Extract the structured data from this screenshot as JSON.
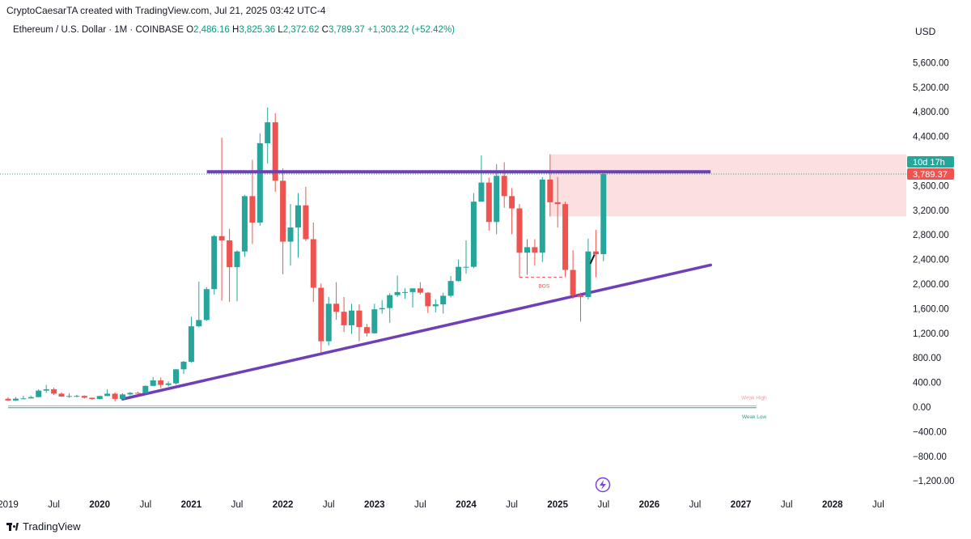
{
  "header": {
    "credit": "CryptoCaesarTA created with TradingView.com, Jul 21, 2025 03:42 UTC-4",
    "symbol": "Ethereum / U.S. Dollar · 1M · COINBASE",
    "ohlc": [
      {
        "label": "O",
        "value": "2,486.16"
      },
      {
        "label": "H",
        "value": "3,825.36"
      },
      {
        "label": "L",
        "value": "2,372.62"
      },
      {
        "label": "C",
        "value": "3,789.37"
      }
    ],
    "change": "+1,303.22 (+52.42%)",
    "currency": "USD"
  },
  "price_tags": {
    "countdown": "10d 17h",
    "last_price": "3,789.37"
  },
  "annotations": {
    "bos": "BOS",
    "weak_high": "Weak High",
    "weak_low": "Weak Low"
  },
  "footer": {
    "logo_text": "TradingView"
  },
  "colors": {
    "up": "#26a69a",
    "down": "#ef5350",
    "trendline": "#6f3fb8",
    "zone": "#fbdada",
    "weak_high": "#f0a0a0",
    "weak_low": "#26a69a"
  },
  "chart_data": {
    "type": "candlestick",
    "interval": "1M",
    "y_axis_ticks": [
      "5,600.00",
      "5,200.00",
      "4,800.00",
      "4,400.00",
      "3,600.00",
      "3,200.00",
      "2,800.00",
      "2,400.00",
      "2,000.00",
      "1,600.00",
      "1,200.00",
      "800.00",
      "400.00",
      "0.00",
      "−400.00",
      "−800.00",
      "−1,200.00"
    ],
    "y_tick_values": [
      5600,
      5200,
      4800,
      4400,
      3600,
      3200,
      2800,
      2400,
      2000,
      1600,
      1200,
      800,
      400,
      0,
      -400,
      -800,
      -1200
    ],
    "ylim": [
      -1400,
      5900
    ],
    "x_axis_labels": [
      {
        "t": 2019.0,
        "label": "2019"
      },
      {
        "t": 2019.5,
        "label": "Jul"
      },
      {
        "t": 2020.0,
        "label": "2020"
      },
      {
        "t": 2020.5,
        "label": "Jul"
      },
      {
        "t": 2021.0,
        "label": "2021"
      },
      {
        "t": 2021.5,
        "label": "Jul"
      },
      {
        "t": 2022.0,
        "label": "2022"
      },
      {
        "t": 2022.5,
        "label": "Jul"
      },
      {
        "t": 2023.0,
        "label": "2023"
      },
      {
        "t": 2023.5,
        "label": "Jul"
      },
      {
        "t": 2024.0,
        "label": "2024"
      },
      {
        "t": 2024.5,
        "label": "Jul"
      },
      {
        "t": 2025.0,
        "label": "2025"
      },
      {
        "t": 2025.5,
        "label": "Jul"
      },
      {
        "t": 2026.0,
        "label": "2026"
      },
      {
        "t": 2026.5,
        "label": "Jul"
      },
      {
        "t": 2027.0,
        "label": "2027"
      },
      {
        "t": 2027.5,
        "label": "Jul"
      },
      {
        "t": 2028.0,
        "label": "2028"
      },
      {
        "t": 2028.5,
        "label": "Jul"
      }
    ],
    "x_bold_years": [
      "2020",
      "2021",
      "2022",
      "2023",
      "2024",
      "2025",
      "2026",
      "2027",
      "2028"
    ],
    "candles": [
      {
        "t": 2019.0,
        "o": 135,
        "h": 160,
        "l": 100,
        "c": 107
      },
      {
        "t": 2019.083,
        "o": 107,
        "h": 165,
        "l": 102,
        "c": 137
      },
      {
        "t": 2019.167,
        "o": 137,
        "h": 185,
        "l": 130,
        "c": 141
      },
      {
        "t": 2019.25,
        "o": 141,
        "h": 185,
        "l": 140,
        "c": 162
      },
      {
        "t": 2019.333,
        "o": 162,
        "h": 290,
        "l": 160,
        "c": 268
      },
      {
        "t": 2019.417,
        "o": 268,
        "h": 360,
        "l": 230,
        "c": 290
      },
      {
        "t": 2019.5,
        "o": 290,
        "h": 315,
        "l": 195,
        "c": 218
      },
      {
        "t": 2019.583,
        "o": 218,
        "h": 240,
        "l": 165,
        "c": 171
      },
      {
        "t": 2019.667,
        "o": 171,
        "h": 225,
        "l": 152,
        "c": 180
      },
      {
        "t": 2019.75,
        "o": 180,
        "h": 200,
        "l": 160,
        "c": 182
      },
      {
        "t": 2019.833,
        "o": 182,
        "h": 190,
        "l": 140,
        "c": 152
      },
      {
        "t": 2019.917,
        "o": 152,
        "h": 155,
        "l": 118,
        "c": 130
      },
      {
        "t": 2020.0,
        "o": 130,
        "h": 185,
        "l": 127,
        "c": 180
      },
      {
        "t": 2020.083,
        "o": 180,
        "h": 288,
        "l": 178,
        "c": 218
      },
      {
        "t": 2020.167,
        "o": 218,
        "h": 240,
        "l": 90,
        "c": 133
      },
      {
        "t": 2020.25,
        "o": 133,
        "h": 225,
        "l": 130,
        "c": 206
      },
      {
        "t": 2020.333,
        "o": 206,
        "h": 245,
        "l": 190,
        "c": 231
      },
      {
        "t": 2020.417,
        "o": 231,
        "h": 250,
        "l": 216,
        "c": 226
      },
      {
        "t": 2020.5,
        "o": 226,
        "h": 350,
        "l": 225,
        "c": 345
      },
      {
        "t": 2020.583,
        "o": 345,
        "h": 490,
        "l": 340,
        "c": 434
      },
      {
        "t": 2020.667,
        "o": 434,
        "h": 480,
        "l": 310,
        "c": 360
      },
      {
        "t": 2020.75,
        "o": 360,
        "h": 420,
        "l": 335,
        "c": 386
      },
      {
        "t": 2020.833,
        "o": 386,
        "h": 620,
        "l": 370,
        "c": 614
      },
      {
        "t": 2020.917,
        "o": 614,
        "h": 750,
        "l": 540,
        "c": 737
      },
      {
        "t": 2021.0,
        "o": 737,
        "h": 1470,
        "l": 718,
        "c": 1313
      },
      {
        "t": 2021.083,
        "o": 1313,
        "h": 2040,
        "l": 1300,
        "c": 1416
      },
      {
        "t": 2021.167,
        "o": 1416,
        "h": 1950,
        "l": 1400,
        "c": 1918
      },
      {
        "t": 2021.25,
        "o": 1918,
        "h": 2800,
        "l": 1830,
        "c": 2780
      },
      {
        "t": 2021.333,
        "o": 2780,
        "h": 4380,
        "l": 1730,
        "c": 2710
      },
      {
        "t": 2021.417,
        "o": 2710,
        "h": 2900,
        "l": 1710,
        "c": 2275
      },
      {
        "t": 2021.5,
        "o": 2275,
        "h": 2550,
        "l": 1720,
        "c": 2530
      },
      {
        "t": 2021.583,
        "o": 2530,
        "h": 3450,
        "l": 2440,
        "c": 3430
      },
      {
        "t": 2021.667,
        "o": 3430,
        "h": 4020,
        "l": 2650,
        "c": 3000
      },
      {
        "t": 2021.75,
        "o": 3000,
        "h": 4450,
        "l": 2950,
        "c": 4290
      },
      {
        "t": 2021.833,
        "o": 4290,
        "h": 4870,
        "l": 3960,
        "c": 4630
      },
      {
        "t": 2021.917,
        "o": 4630,
        "h": 4780,
        "l": 3500,
        "c": 3680
      },
      {
        "t": 2022.0,
        "o": 3680,
        "h": 3880,
        "l": 2160,
        "c": 2690
      },
      {
        "t": 2022.083,
        "o": 2690,
        "h": 3300,
        "l": 2300,
        "c": 2920
      },
      {
        "t": 2022.167,
        "o": 2920,
        "h": 3480,
        "l": 2430,
        "c": 3280
      },
      {
        "t": 2022.25,
        "o": 3280,
        "h": 3580,
        "l": 2700,
        "c": 2730
      },
      {
        "t": 2022.333,
        "o": 2730,
        "h": 3000,
        "l": 1710,
        "c": 1940
      },
      {
        "t": 2022.417,
        "o": 1940,
        "h": 2010,
        "l": 880,
        "c": 1070
      },
      {
        "t": 2022.5,
        "o": 1070,
        "h": 1790,
        "l": 1000,
        "c": 1680
      },
      {
        "t": 2022.583,
        "o": 1680,
        "h": 2030,
        "l": 1420,
        "c": 1550
      },
      {
        "t": 2022.667,
        "o": 1550,
        "h": 1790,
        "l": 1220,
        "c": 1330
      },
      {
        "t": 2022.75,
        "o": 1330,
        "h": 1680,
        "l": 1190,
        "c": 1570
      },
      {
        "t": 2022.833,
        "o": 1570,
        "h": 1670,
        "l": 1070,
        "c": 1300
      },
      {
        "t": 2022.917,
        "o": 1300,
        "h": 1350,
        "l": 1150,
        "c": 1200
      },
      {
        "t": 2023.0,
        "o": 1200,
        "h": 1680,
        "l": 1190,
        "c": 1590
      },
      {
        "t": 2023.083,
        "o": 1590,
        "h": 1740,
        "l": 1520,
        "c": 1610
      },
      {
        "t": 2023.167,
        "o": 1610,
        "h": 1850,
        "l": 1370,
        "c": 1820
      },
      {
        "t": 2023.25,
        "o": 1820,
        "h": 2140,
        "l": 1790,
        "c": 1870
      },
      {
        "t": 2023.333,
        "o": 1870,
        "h": 1930,
        "l": 1760,
        "c": 1870
      },
      {
        "t": 2023.417,
        "o": 1870,
        "h": 1930,
        "l": 1620,
        "c": 1930
      },
      {
        "t": 2023.5,
        "o": 1930,
        "h": 2030,
        "l": 1830,
        "c": 1860
      },
      {
        "t": 2023.583,
        "o": 1860,
        "h": 1870,
        "l": 1530,
        "c": 1640
      },
      {
        "t": 2023.667,
        "o": 1640,
        "h": 1750,
        "l": 1540,
        "c": 1670
      },
      {
        "t": 2023.75,
        "o": 1670,
        "h": 1860,
        "l": 1520,
        "c": 1810
      },
      {
        "t": 2023.833,
        "o": 1810,
        "h": 2130,
        "l": 1780,
        "c": 2050
      },
      {
        "t": 2023.917,
        "o": 2050,
        "h": 2400,
        "l": 2040,
        "c": 2280
      },
      {
        "t": 2024.0,
        "o": 2280,
        "h": 2710,
        "l": 2170,
        "c": 2280
      },
      {
        "t": 2024.083,
        "o": 2280,
        "h": 3480,
        "l": 2260,
        "c": 3340
      },
      {
        "t": 2024.167,
        "o": 3340,
        "h": 4090,
        "l": 3340,
        "c": 3650
      },
      {
        "t": 2024.25,
        "o": 3650,
        "h": 3730,
        "l": 2870,
        "c": 3010
      },
      {
        "t": 2024.333,
        "o": 3010,
        "h": 3950,
        "l": 2810,
        "c": 3760
      },
      {
        "t": 2024.417,
        "o": 3760,
        "h": 3980,
        "l": 3240,
        "c": 3430
      },
      {
        "t": 2024.5,
        "o": 3430,
        "h": 3560,
        "l": 2810,
        "c": 3230
      },
      {
        "t": 2024.583,
        "o": 3230,
        "h": 3300,
        "l": 2110,
        "c": 2510
      },
      {
        "t": 2024.667,
        "o": 2510,
        "h": 2730,
        "l": 2150,
        "c": 2600
      },
      {
        "t": 2024.75,
        "o": 2600,
        "h": 2730,
        "l": 2300,
        "c": 2510
      },
      {
        "t": 2024.833,
        "o": 2510,
        "h": 3740,
        "l": 2360,
        "c": 3700
      },
      {
        "t": 2024.917,
        "o": 3700,
        "h": 4110,
        "l": 3100,
        "c": 3330
      },
      {
        "t": 2025.0,
        "o": 3330,
        "h": 3740,
        "l": 2920,
        "c": 3300
      },
      {
        "t": 2025.083,
        "o": 3300,
        "h": 3340,
        "l": 2120,
        "c": 2230
      },
      {
        "t": 2025.167,
        "o": 2230,
        "h": 2550,
        "l": 1760,
        "c": 1820
      },
      {
        "t": 2025.25,
        "o": 1820,
        "h": 1860,
        "l": 1390,
        "c": 1790
      },
      {
        "t": 2025.333,
        "o": 1790,
        "h": 2740,
        "l": 1750,
        "c": 2530
      },
      {
        "t": 2025.417,
        "o": 2530,
        "h": 2880,
        "l": 2110,
        "c": 2486
      },
      {
        "t": 2025.5,
        "o": 2486,
        "h": 3825,
        "l": 2373,
        "c": 3789
      }
    ],
    "horizontal_level": {
      "price": 3825,
      "t_start": 2021.17,
      "t_end": 2026.67
    },
    "trendline": {
      "t1": 2020.25,
      "p1": 130,
      "t2": 2026.67,
      "p2": 2310
    },
    "zone": {
      "t_start": 2024.917,
      "t_end": 2028.0,
      "top": 4110,
      "bottom": 3100
    },
    "bos": {
      "t_start": 2024.583,
      "t_end": 2025.083,
      "price": 2110
    },
    "weak_high": {
      "price": 20,
      "t_end": 2027.17
    },
    "weak_low": {
      "price": -10,
      "t_end": 2027.17
    },
    "last_price_line": 3789.37
  }
}
